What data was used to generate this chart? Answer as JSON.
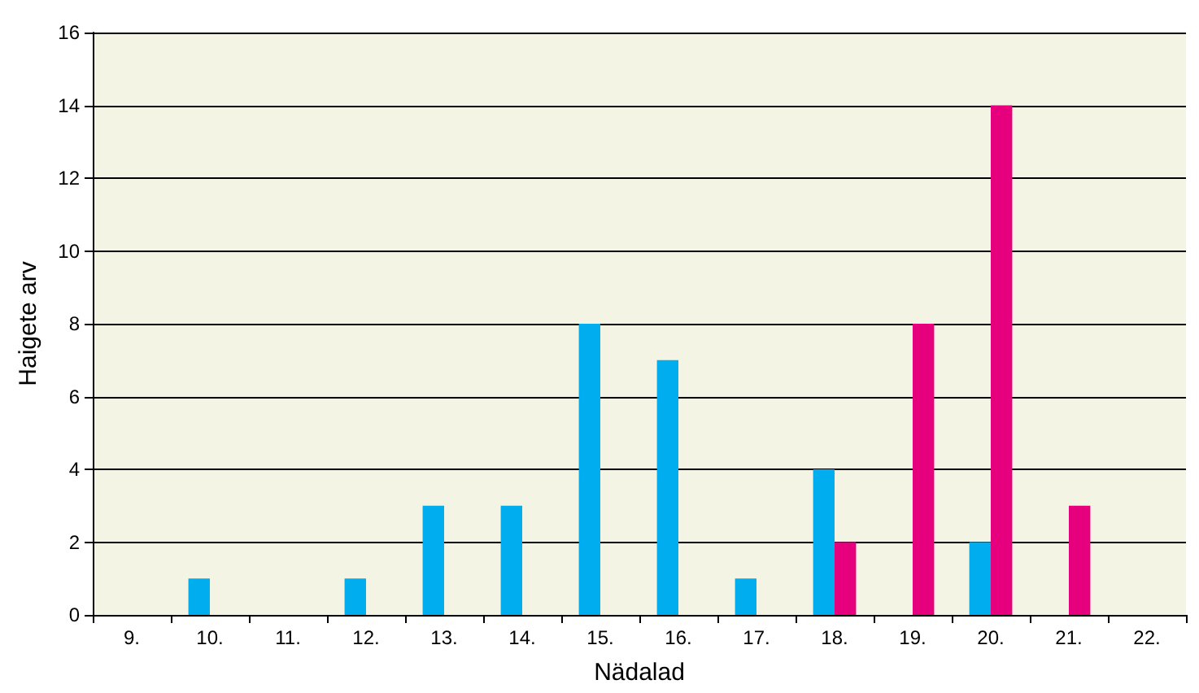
{
  "chart_data": {
    "type": "bar",
    "xlabel": "Nädalad",
    "ylabel": "Haigete arv",
    "categories": [
      "9.",
      "10.",
      "11.",
      "12.",
      "13.",
      "14.",
      "15.",
      "16.",
      "17.",
      "18.",
      "19.",
      "20.",
      "21.",
      "22."
    ],
    "series": [
      {
        "color": "#00aeef",
        "values": [
          0,
          1,
          0,
          1,
          3,
          3,
          8,
          7,
          1,
          4,
          0,
          2,
          0,
          0
        ]
      },
      {
        "color": "#e6007e",
        "values": [
          0,
          0,
          0,
          0,
          0,
          0,
          0,
          0,
          0,
          2,
          8,
          14,
          3,
          0
        ]
      }
    ],
    "ylim": [
      0,
      16
    ],
    "yticks": [
      0,
      2,
      4,
      6,
      8,
      10,
      12,
      14,
      16
    ],
    "grid": "y"
  }
}
